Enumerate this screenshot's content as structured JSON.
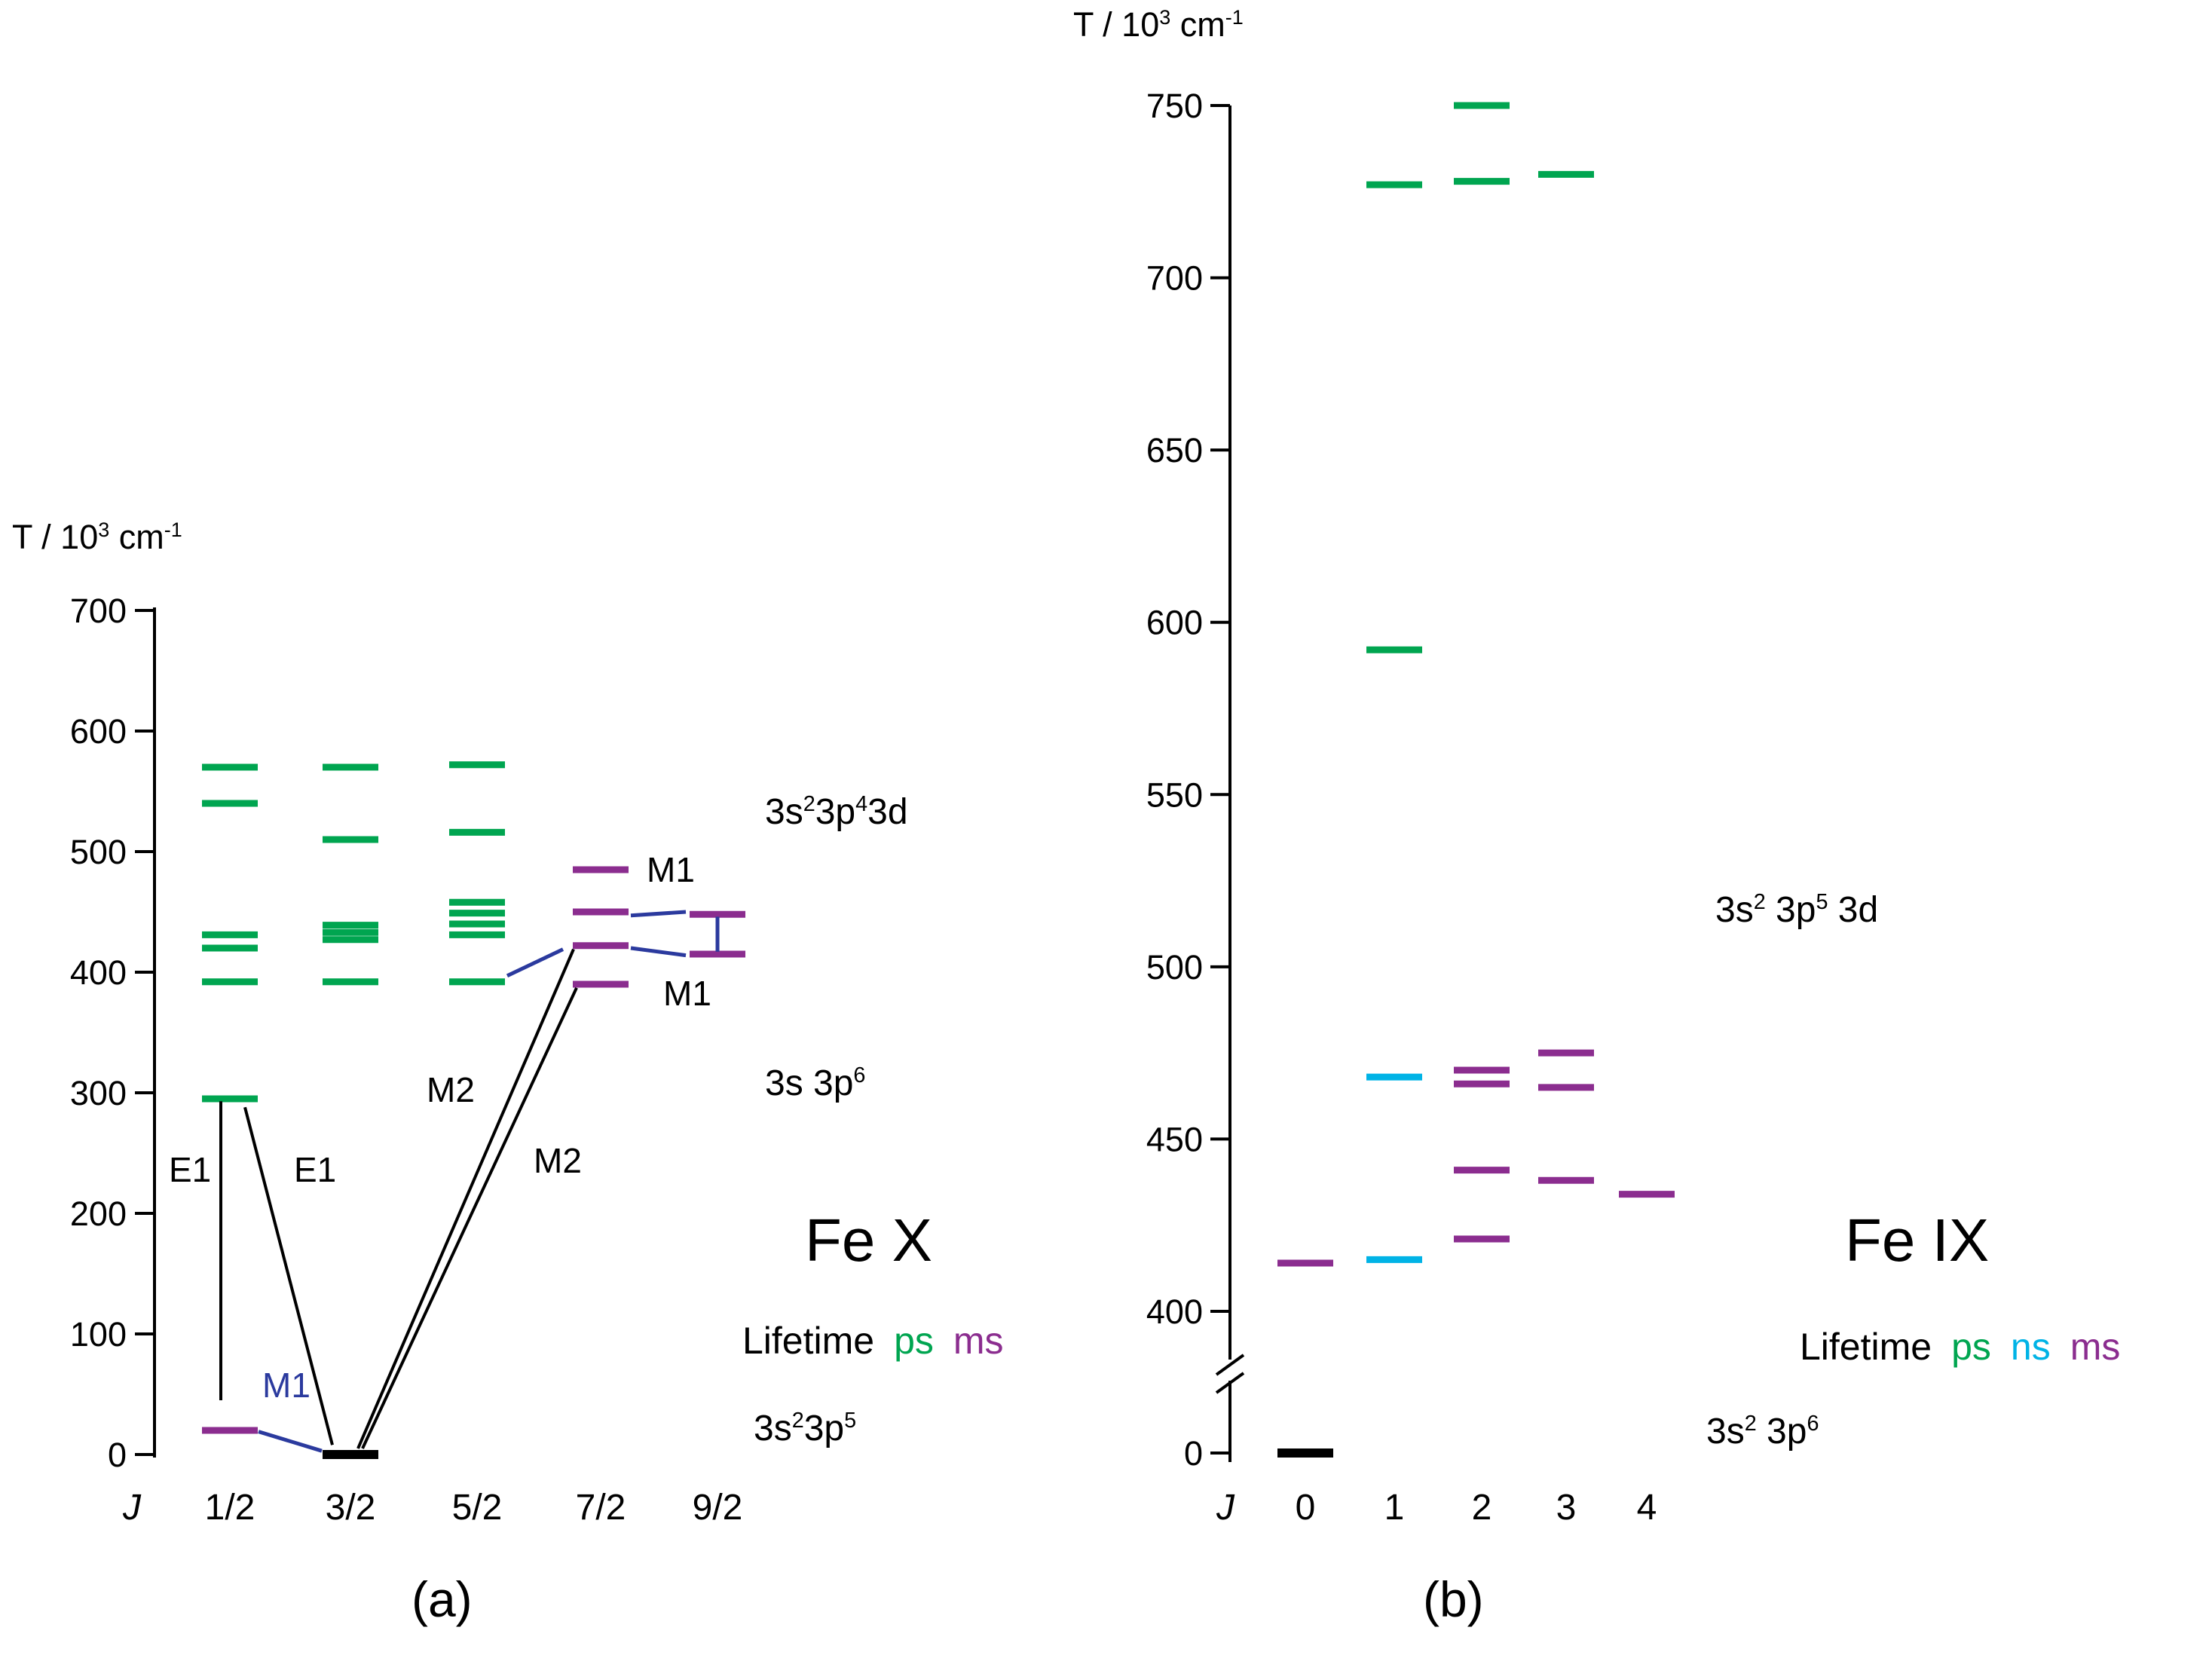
{
  "page": {
    "background": "#ffffff"
  },
  "chart_data": [
    {
      "id": "a",
      "type": "energy-level-diagram",
      "title": "Fe X",
      "caption": "(a)",
      "xlabel": "J",
      "ylabel": "T / 10^3 cm^-1",
      "ylim": [
        0,
        700
      ],
      "axis": {
        "title_parts": [
          {
            "t": "T / 10"
          },
          {
            "t": "3",
            "sup": true
          },
          {
            "t": " cm"
          },
          {
            "t": "-1",
            "sup": true
          }
        ],
        "yticks": [
          700,
          600,
          500,
          400,
          300,
          200,
          100,
          0
        ]
      },
      "x_axis": {
        "label": "J",
        "categories": [
          "1/2",
          "3/2",
          "5/2",
          "7/2",
          "9/2"
        ]
      },
      "lifetime_colors": {
        "ps": "#00a550",
        "ns": "#00b3e6",
        "ms": "#8b2d8f",
        "ground": "#000000"
      },
      "levels": [
        {
          "j": "1/2",
          "T": 570,
          "lifetime": "ps"
        },
        {
          "j": "1/2",
          "T": 540,
          "lifetime": "ps"
        },
        {
          "j": "1/2",
          "T": 431,
          "lifetime": "ps"
        },
        {
          "j": "1/2",
          "T": 420,
          "lifetime": "ps"
        },
        {
          "j": "1/2",
          "T": 392,
          "lifetime": "ps"
        },
        {
          "j": "1/2",
          "T": 295,
          "lifetime": "ps"
        },
        {
          "j": "1/2",
          "T": 20,
          "lifetime": "ms"
        },
        {
          "j": "3/2",
          "T": 570,
          "lifetime": "ps"
        },
        {
          "j": "3/2",
          "T": 510,
          "lifetime": "ps"
        },
        {
          "j": "3/2",
          "T": 439,
          "lifetime": "ps"
        },
        {
          "j": "3/2",
          "T": 433,
          "lifetime": "ps"
        },
        {
          "j": "3/2",
          "T": 427,
          "lifetime": "ps"
        },
        {
          "j": "3/2",
          "T": 392,
          "lifetime": "ps"
        },
        {
          "j": "3/2",
          "T": 0,
          "lifetime": "ground"
        },
        {
          "j": "5/2",
          "T": 572,
          "lifetime": "ps"
        },
        {
          "j": "5/2",
          "T": 516,
          "lifetime": "ps"
        },
        {
          "j": "5/2",
          "T": 458,
          "lifetime": "ps"
        },
        {
          "j": "5/2",
          "T": 449,
          "lifetime": "ps"
        },
        {
          "j": "5/2",
          "T": 440,
          "lifetime": "ps"
        },
        {
          "j": "5/2",
          "T": 431,
          "lifetime": "ps"
        },
        {
          "j": "5/2",
          "T": 392,
          "lifetime": "ps"
        },
        {
          "j": "7/2",
          "T": 485,
          "lifetime": "ms"
        },
        {
          "j": "7/2",
          "T": 450,
          "lifetime": "ms"
        },
        {
          "j": "7/2",
          "T": 422,
          "lifetime": "ms"
        },
        {
          "j": "7/2",
          "T": 390,
          "lifetime": "ms"
        },
        {
          "j": "9/2",
          "T": 448,
          "lifetime": "ms"
        },
        {
          "j": "9/2",
          "T": 415,
          "lifetime": "ms"
        }
      ],
      "transitions": [
        {
          "id": "e1-vert",
          "kind": "E1",
          "color": "#000000",
          "width": 4,
          "from": {
            "j": "1/2",
            "T": 293,
            "dx": -12
          },
          "to": {
            "j": "1/2",
            "T": 45,
            "dx": -12
          }
        },
        {
          "id": "e1-diag",
          "kind": "E1",
          "color": "#000000",
          "width": 4,
          "from": {
            "j": "1/2",
            "T": 288,
            "dx": 20
          },
          "to": {
            "j": "3/2",
            "T": 8,
            "dx": -24
          }
        },
        {
          "id": "m2-a",
          "kind": "M2",
          "color": "#000000",
          "width": 4,
          "from": {
            "j": "3/2",
            "T": 5,
            "dx": 10
          },
          "to": {
            "j": "7/2",
            "T": 419,
            "dx": -36
          }
        },
        {
          "id": "m2-b",
          "kind": "M2",
          "color": "#000000",
          "width": 4,
          "from": {
            "j": "3/2",
            "T": 5,
            "dx": 16
          },
          "to": {
            "j": "7/2",
            "T": 387,
            "dx": -32
          }
        },
        {
          "id": "m1-ground",
          "kind": "M1",
          "color": "#2b3a9e",
          "width": 5,
          "from": {
            "j": "1/2",
            "T": 19,
            "dx": 38
          },
          "to": {
            "j": "3/2",
            "T": 3,
            "dx": -38
          }
        },
        {
          "id": "m1-mid",
          "kind": "M1",
          "color": "#2b3a9e",
          "width": 5,
          "from": {
            "j": "5/2",
            "T": 397,
            "dx": 40
          },
          "to": {
            "j": "7/2",
            "T": 419,
            "dx": -50
          }
        },
        {
          "id": "m1-up9",
          "kind": "M1",
          "color": "#2b3a9e",
          "width": 5,
          "from": {
            "j": "7/2",
            "T": 447,
            "dx": 40
          },
          "to": {
            "j": "9/2",
            "T": 450,
            "dx": -42
          }
        },
        {
          "id": "m1-low9",
          "kind": "M1",
          "color": "#2b3a9e",
          "width": 5,
          "from": {
            "j": "7/2",
            "T": 420,
            "dx": 40
          },
          "to": {
            "j": "9/2",
            "T": 414,
            "dx": -42
          }
        },
        {
          "id": "m1-vert9",
          "kind": "M1",
          "color": "#2b3a9e",
          "width": 5,
          "from": {
            "j": "9/2",
            "T": 446,
            "dx": 0
          },
          "to": {
            "j": "9/2",
            "T": 417,
            "dx": 0
          }
        }
      ],
      "transition_labels": [
        {
          "id": "e1-left",
          "text": "E1",
          "color": "#000000"
        },
        {
          "id": "e1-diag",
          "text": "E1",
          "color": "#000000"
        },
        {
          "id": "m2-upper",
          "text": "M2",
          "color": "#000000"
        },
        {
          "id": "m2-lower",
          "text": "M2",
          "color": "#000000"
        },
        {
          "id": "m1-blue",
          "text": "M1",
          "color": "#2b3a9e"
        },
        {
          "id": "m1-upper",
          "text": "M1",
          "color": "#000000"
        },
        {
          "id": "m1-lower",
          "text": "M1",
          "color": "#000000"
        }
      ],
      "annotations": [
        {
          "id": "config-3s2-3p4-3d",
          "parts": [
            {
              "t": "3s"
            },
            {
              "t": "2",
              "sup": true
            },
            {
              "t": "3p"
            },
            {
              "t": "4",
              "sup": true
            },
            {
              "t": "3d"
            }
          ]
        },
        {
          "id": "config-3s-3p6",
          "parts": [
            {
              "t": "3s 3p"
            },
            {
              "t": "6",
              "sup": true
            }
          ]
        },
        {
          "id": "config-3s2-3p5",
          "parts": [
            {
              "t": "3s"
            },
            {
              "t": "2",
              "sup": true
            },
            {
              "t": "3p"
            },
            {
              "t": "5",
              "sup": true
            }
          ]
        }
      ],
      "legend": {
        "prefix": "Lifetime",
        "entries": [
          {
            "label": "ps",
            "color": "#00a550"
          },
          {
            "label": "ms",
            "color": "#8b2d8f"
          }
        ]
      }
    },
    {
      "id": "b",
      "type": "energy-level-diagram",
      "title": "Fe IX",
      "caption": "(b)",
      "xlabel": "J",
      "ylabel": "T / 10^3 cm^-1",
      "ylim": [
        0,
        750
      ],
      "axis_break": true,
      "axis": {
        "title_parts": [
          {
            "t": "T / 10"
          },
          {
            "t": "3",
            "sup": true
          },
          {
            "t": " cm"
          },
          {
            "t": "-1",
            "sup": true
          }
        ],
        "yticks": [
          750,
          700,
          650,
          600,
          550,
          500,
          450,
          400,
          0
        ]
      },
      "x_axis": {
        "label": "J",
        "categories": [
          "0",
          "1",
          "2",
          "3",
          "4"
        ]
      },
      "lifetime_colors": {
        "ps": "#00a550",
        "ns": "#00b3e6",
        "ms": "#8b2d8f",
        "ground": "#000000"
      },
      "levels": [
        {
          "j": "0",
          "T": 414,
          "lifetime": "ms"
        },
        {
          "j": "0",
          "T": 0,
          "lifetime": "ground"
        },
        {
          "j": "1",
          "T": 727,
          "lifetime": "ps"
        },
        {
          "j": "1",
          "T": 592,
          "lifetime": "ps"
        },
        {
          "j": "1",
          "T": 468,
          "lifetime": "ns"
        },
        {
          "j": "1",
          "T": 415,
          "lifetime": "ns"
        },
        {
          "j": "2",
          "T": 750,
          "lifetime": "ps"
        },
        {
          "j": "2",
          "T": 728,
          "lifetime": "ps"
        },
        {
          "j": "2",
          "T": 470,
          "lifetime": "ms"
        },
        {
          "j": "2",
          "T": 466,
          "lifetime": "ms"
        },
        {
          "j": "2",
          "T": 441,
          "lifetime": "ms"
        },
        {
          "j": "2",
          "T": 421,
          "lifetime": "ms"
        },
        {
          "j": "3",
          "T": 730,
          "lifetime": "ps"
        },
        {
          "j": "3",
          "T": 475,
          "lifetime": "ms"
        },
        {
          "j": "3",
          "T": 465,
          "lifetime": "ms"
        },
        {
          "j": "3",
          "T": 438,
          "lifetime": "ms"
        },
        {
          "j": "4",
          "T": 434,
          "lifetime": "ms"
        }
      ],
      "transitions": [],
      "transition_labels": [],
      "annotations": [
        {
          "id": "config-3s2-3p5-3d",
          "parts": [
            {
              "t": "3s"
            },
            {
              "t": "2",
              "sup": true
            },
            {
              "t": " 3p"
            },
            {
              "t": "5",
              "sup": true
            },
            {
              "t": " 3d"
            }
          ]
        },
        {
          "id": "config-3s2-3p6",
          "parts": [
            {
              "t": "3s"
            },
            {
              "t": "2",
              "sup": true
            },
            {
              "t": " 3p"
            },
            {
              "t": "6",
              "sup": true
            }
          ]
        }
      ],
      "legend": {
        "prefix": "Lifetime",
        "entries": [
          {
            "label": "ps",
            "color": "#00a550"
          },
          {
            "label": "ns",
            "color": "#00b3e6"
          },
          {
            "label": "ms",
            "color": "#8b2d8f"
          }
        ]
      }
    }
  ]
}
